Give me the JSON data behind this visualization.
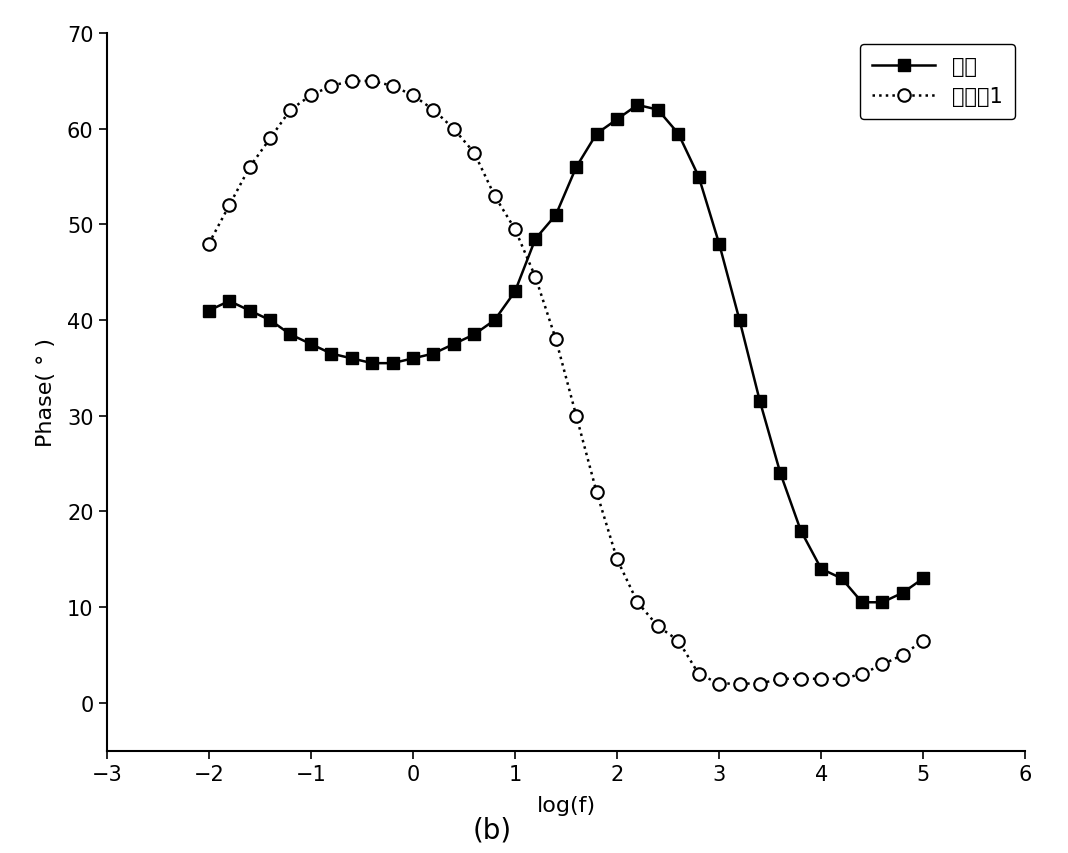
{
  "title": "",
  "xlabel": "log(f)",
  "ylabel": "Phase( ° )",
  "subtitle": "(b)",
  "xlim": [
    -3,
    6
  ],
  "ylim": [
    -5,
    70
  ],
  "xticks": [
    -3,
    -2,
    -1,
    0,
    1,
    2,
    3,
    4,
    5,
    6
  ],
  "yticks": [
    0,
    10,
    20,
    30,
    40,
    50,
    60,
    70
  ],
  "series1_label": "基准",
  "series2_label": "实施例1",
  "series1_x": [
    -2.0,
    -1.8,
    -1.6,
    -1.4,
    -1.2,
    -1.0,
    -0.8,
    -0.6,
    -0.4,
    -0.2,
    0.0,
    0.2,
    0.4,
    0.6,
    0.8,
    1.0,
    1.2,
    1.4,
    1.6,
    1.8,
    2.0,
    2.2,
    2.4,
    2.6,
    2.8,
    3.0,
    3.2,
    3.4,
    3.6,
    3.8,
    4.0,
    4.2,
    4.4,
    4.6,
    4.8,
    5.0
  ],
  "series1_y": [
    41.0,
    42.0,
    41.0,
    40.0,
    38.5,
    37.5,
    36.5,
    36.0,
    35.5,
    35.5,
    36.0,
    36.5,
    37.5,
    38.5,
    40.0,
    43.0,
    48.5,
    51.0,
    56.0,
    59.5,
    61.0,
    62.5,
    62.0,
    59.5,
    55.0,
    48.0,
    40.0,
    31.5,
    24.0,
    18.0,
    14.0,
    13.0,
    10.5,
    10.5,
    11.5,
    13.0
  ],
  "series2_x": [
    -2.0,
    -1.8,
    -1.6,
    -1.4,
    -1.2,
    -1.0,
    -0.8,
    -0.6,
    -0.4,
    -0.2,
    0.0,
    0.2,
    0.4,
    0.6,
    0.8,
    1.0,
    1.2,
    1.4,
    1.6,
    1.8,
    2.0,
    2.2,
    2.4,
    2.6,
    2.8,
    3.0,
    3.2,
    3.4,
    3.6,
    3.8,
    4.0,
    4.2,
    4.4,
    4.6,
    4.8,
    5.0
  ],
  "series2_y": [
    48.0,
    52.0,
    56.0,
    59.0,
    62.0,
    63.5,
    64.5,
    65.0,
    65.0,
    64.5,
    63.5,
    62.0,
    60.0,
    57.5,
    53.0,
    49.5,
    44.5,
    38.0,
    30.0,
    22.0,
    15.0,
    10.5,
    8.0,
    6.5,
    3.0,
    2.0,
    2.0,
    2.0,
    2.5,
    2.5,
    2.5,
    2.5,
    3.0,
    4.0,
    5.0,
    6.5
  ],
  "line_color": "#000000",
  "background_color": "#ffffff",
  "legend_loc": "upper right",
  "fontsize_tick": 15,
  "fontsize_label": 16,
  "fontsize_legend": 15,
  "fontsize_subtitle": 20
}
